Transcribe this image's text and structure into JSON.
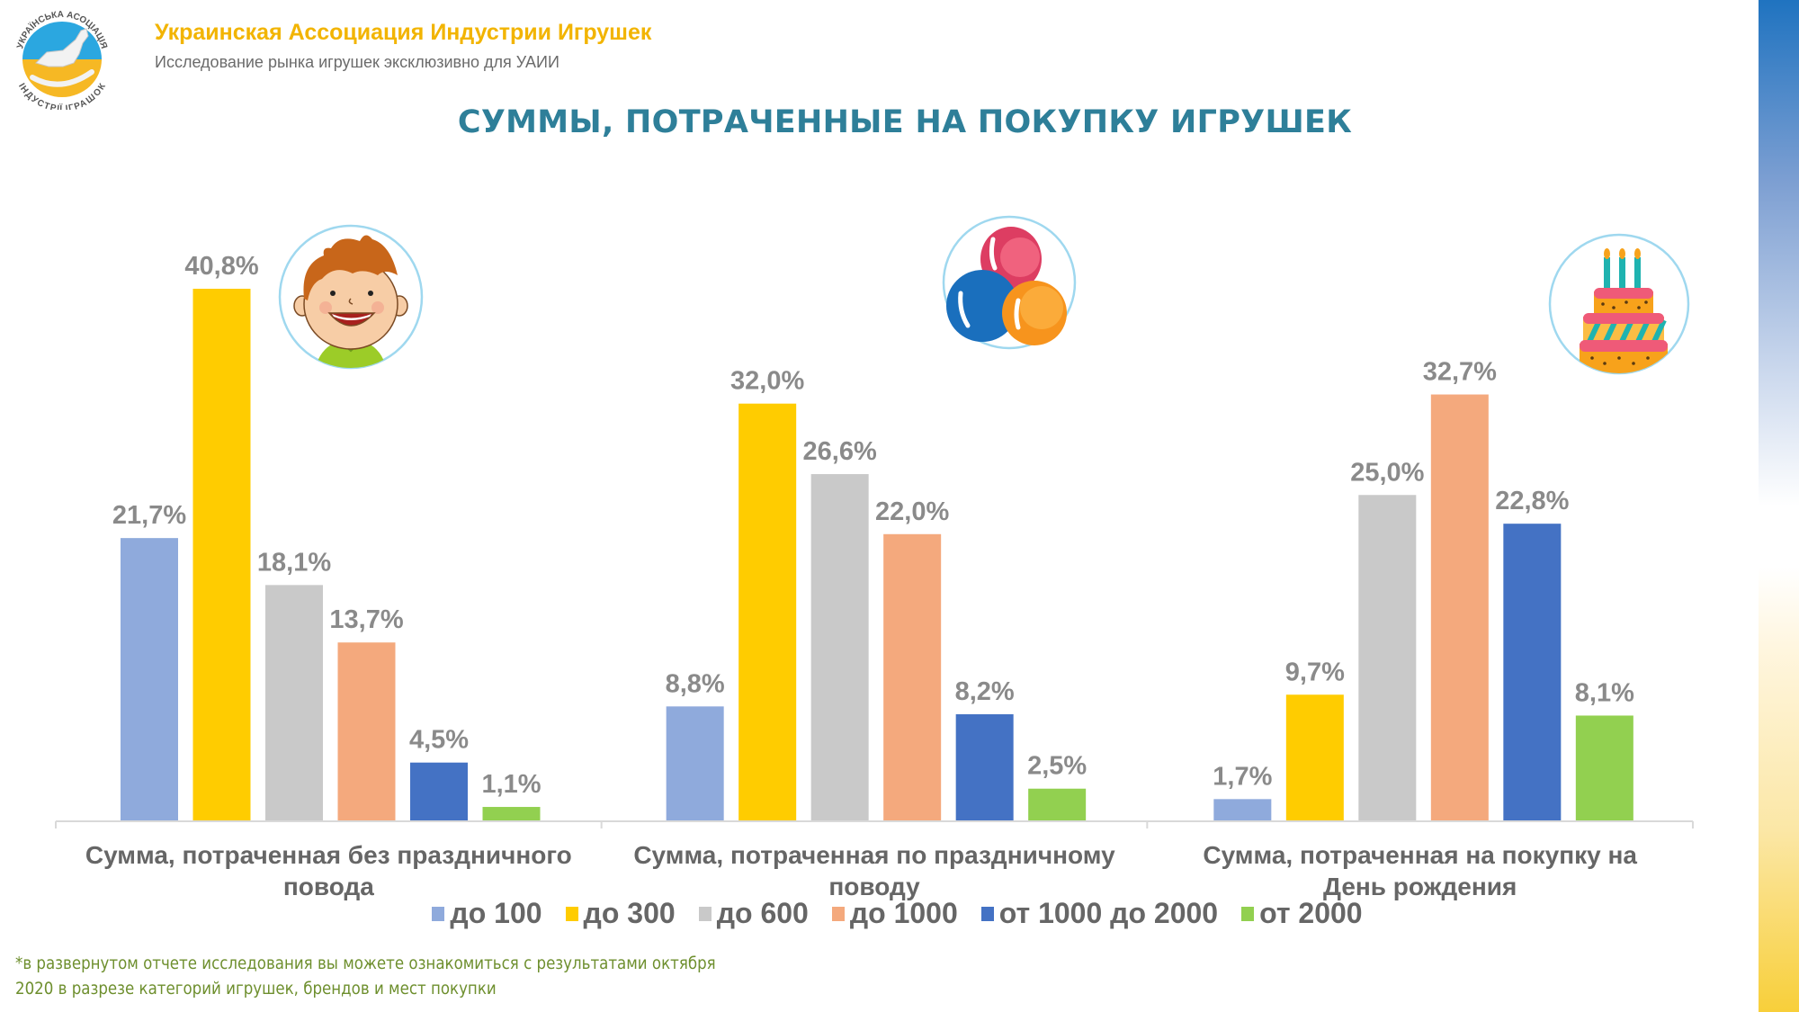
{
  "header": {
    "org_title": "Украинская Ассоциация Индустрии Игрушек",
    "org_subtitle": "Исследование рынка игрушек эксклюзивно для УАИИ",
    "logo_top_text": "УКРАЇНСЬКА АСОЦІАЦІЯ",
    "logo_bottom_text": "ІНДУСТРІЇ ІГРАШОК"
  },
  "page_title": "СУММЫ, ПОТРАЧЕННЫЕ НА ПОКУПКУ ИГРУШЕК",
  "icons": {
    "group0": "boy-face-icon",
    "group1": "balloons-icon",
    "group2": "birthday-cake-icon"
  },
  "chart_data": {
    "type": "bar",
    "title": "СУММЫ, ПОТРАЧЕННЫЕ НА ПОКУПКУ ИГРУШЕК",
    "xlabel": "",
    "ylabel": "",
    "ylim": [
      0,
      42
    ],
    "grid": false,
    "legend_position": "bottom",
    "categories": [
      "Сумма, потраченная без праздничного повода",
      "Сумма, потраченная по праздничному поводу",
      "Сумма, потраченная на покупку на День рождения"
    ],
    "category_lines": [
      [
        "Сумма, потраченная без праздничного",
        "повода"
      ],
      [
        "Сумма, потраченная по праздничному",
        "поводу"
      ],
      [
        "Сумма, потраченная на покупку на",
        "День рождения"
      ]
    ],
    "series": [
      {
        "name": "до 100",
        "color": "#8faadc",
        "values": [
          21.7,
          8.8,
          1.7
        ],
        "labels": [
          "21,7%",
          "8,8%",
          "1,7%"
        ]
      },
      {
        "name": "до 300",
        "color": "#ffcc00",
        "values": [
          40.8,
          32.0,
          9.7
        ],
        "labels": [
          "40,8%",
          "32,0%",
          "9,7%"
        ]
      },
      {
        "name": "до 600",
        "color": "#c9c9c9",
        "values": [
          18.1,
          26.6,
          25.0
        ],
        "labels": [
          "18,1%",
          "26,6%",
          "25,0%"
        ]
      },
      {
        "name": "до 1000",
        "color": "#f4a97d",
        "values": [
          13.7,
          22.0,
          32.7
        ],
        "labels": [
          "13,7%",
          "22,0%",
          "32,7%"
        ]
      },
      {
        "name": "от 1000 до 2000",
        "color": "#4472c4",
        "values": [
          4.5,
          8.2,
          22.8
        ],
        "labels": [
          "4,5%",
          "8,2%",
          "22,8%"
        ]
      },
      {
        "name": "от 2000",
        "color": "#92d050",
        "values": [
          1.1,
          2.5,
          8.1
        ],
        "labels": [
          "1,1%",
          "2,5%",
          "8,1%"
        ]
      }
    ]
  },
  "footnote": {
    "line1": "*в развернутом отчете исследования вы можете ознакомиться с результатами октября",
    "line2": "2020 в разрезе категорий игрушек, брендов и мест покупки"
  }
}
